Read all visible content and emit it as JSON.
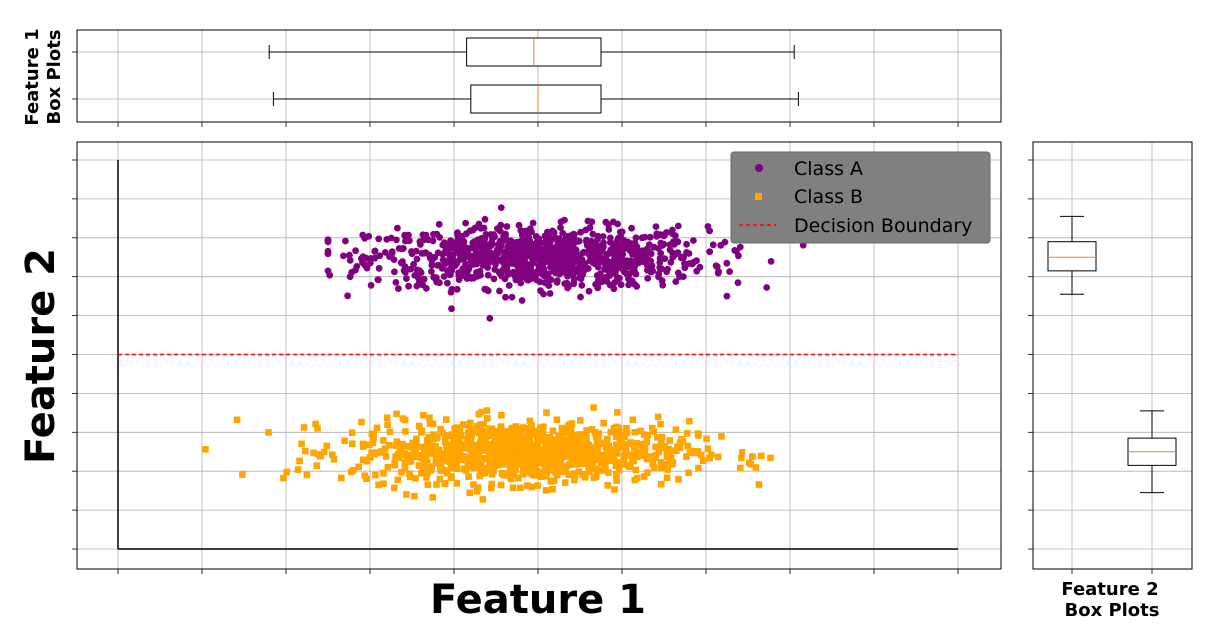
{
  "chart_data": {
    "type": "scatter",
    "xlabel": "Feature 1",
    "ylabel": "Feature 2",
    "top_panel_label": [
      "Feature 1",
      "Box Plots"
    ],
    "right_panel_label": [
      "Feature 2",
      "Box Plots"
    ],
    "xlim": [
      -5,
      5
    ],
    "ylim": [
      -5,
      5
    ],
    "grid": true,
    "legend_position": "upper-right",
    "series": [
      {
        "name": "Class A",
        "marker": "circle",
        "color": "#800080",
        "center": [
          0.0,
          2.5
        ],
        "spread": [
          1.0,
          0.3
        ],
        "n": 1000,
        "extent_x": [
          -2.5,
          4.2
        ],
        "extent_y": [
          0.3,
          3.9
        ]
      },
      {
        "name": "Class B",
        "marker": "square",
        "color": "#FFA500",
        "center": [
          -0.2,
          -2.5
        ],
        "spread": [
          1.0,
          0.3
        ],
        "n": 1000,
        "extent_x": [
          -4.6,
          3.9
        ],
        "extent_y": [
          -4.5,
          -0.7
        ]
      }
    ],
    "decision_boundary": {
      "name": "Decision Boundary",
      "y": 0,
      "color": "#ff0000",
      "style": "dashed"
    },
    "feature1_boxplots": [
      {
        "whisker_low": -3.2,
        "q1": -0.85,
        "median": -0.05,
        "q3": 0.75,
        "whisker_high": 3.05
      },
      {
        "whisker_low": -3.15,
        "q1": -0.8,
        "median": 0.0,
        "q3": 0.75,
        "whisker_high": 3.1
      }
    ],
    "feature2_boxplots": [
      {
        "whisker_low": 1.55,
        "q1": 2.15,
        "median": 2.5,
        "q3": 2.9,
        "whisker_high": 3.55
      },
      {
        "whisker_low": -3.55,
        "q1": -2.85,
        "median": -2.5,
        "q3": -2.15,
        "whisker_high": -1.45
      }
    ],
    "median_color": "#f08020"
  }
}
